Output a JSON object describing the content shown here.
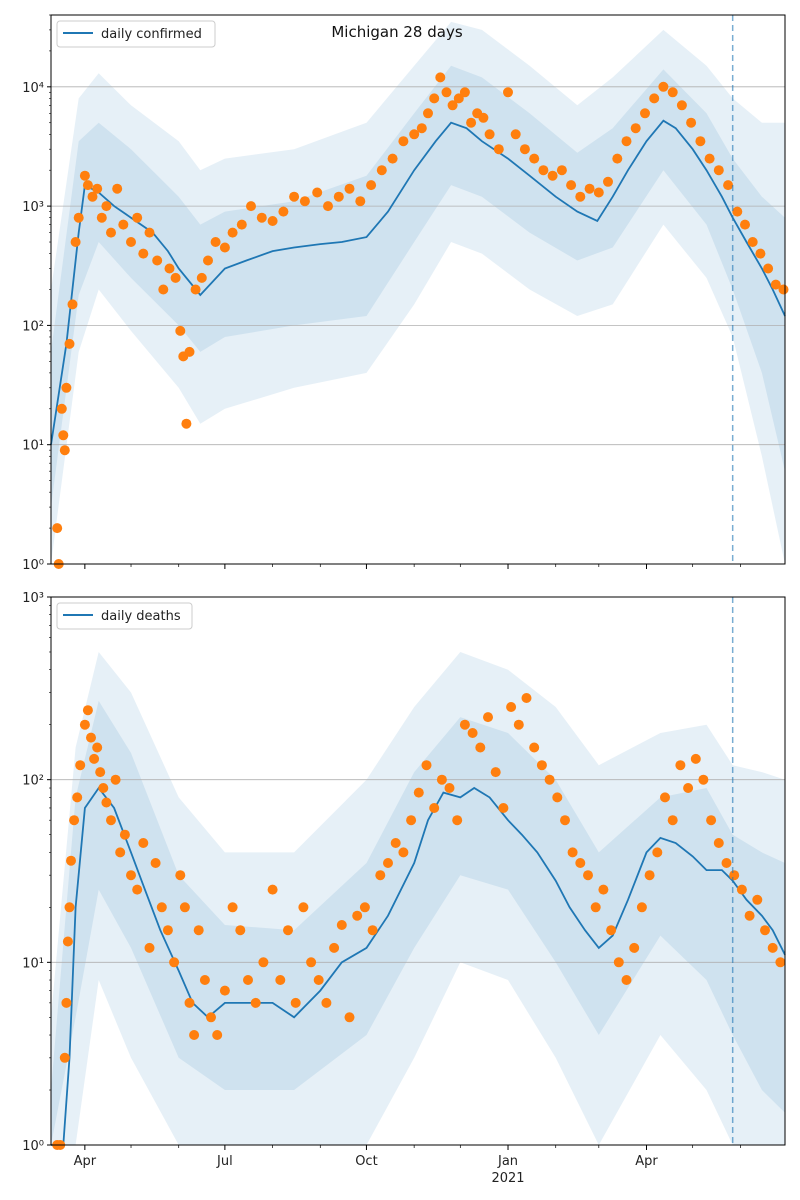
{
  "figure": {
    "title": "Michigan 28 days"
  },
  "colors": {
    "line": "#1f77b4",
    "points": "#ff7f0e",
    "band": "#1f77b4",
    "grid": "#b0b0b0",
    "vline": "#1f77b4"
  },
  "chart_data": [
    {
      "type": "line",
      "name": "daily-confirmed-panel",
      "legend": "daily confirmed",
      "legend_position": "top-left",
      "yscale": "log",
      "ylim": [
        1,
        40000
      ],
      "yticks": [
        1,
        10,
        100,
        1000,
        10000
      ],
      "ytick_labels": [
        "10⁰",
        "10¹",
        "10²",
        "10³",
        "10⁴"
      ],
      "grid": true,
      "xlim": [
        "2020-03-10",
        "2021-06-30"
      ],
      "forecast_start": "2021-05-27",
      "line": {
        "x": [
          "2020-03-10",
          "2020-03-20",
          "2020-03-28",
          "2020-04-01",
          "2020-04-10",
          "2020-04-20",
          "2020-05-01",
          "2020-05-15",
          "2020-05-25",
          "2020-06-01",
          "2020-06-15",
          "2020-07-01",
          "2020-07-15",
          "2020-08-01",
          "2020-08-15",
          "2020-09-01",
          "2020-09-15",
          "2020-10-01",
          "2020-10-15",
          "2020-11-01",
          "2020-11-15",
          "2020-11-25",
          "2020-12-05",
          "2020-12-15",
          "2021-01-01",
          "2021-01-15",
          "2021-02-01",
          "2021-02-15",
          "2021-02-28",
          "2021-03-10",
          "2021-03-20",
          "2021-04-01",
          "2021-04-12",
          "2021-04-20",
          "2021-05-01",
          "2021-05-10",
          "2021-05-20",
          "2021-05-27",
          "2021-06-05",
          "2021-06-15",
          "2021-06-22",
          "2021-06-30"
        ],
        "y": [
          10,
          70,
          600,
          1500,
          1300,
          1000,
          800,
          600,
          420,
          300,
          180,
          300,
          350,
          420,
          450,
          480,
          500,
          550,
          900,
          2000,
          3500,
          5000,
          4500,
          3500,
          2500,
          1800,
          1200,
          900,
          750,
          1200,
          2000,
          3500,
          5200,
          4500,
          3000,
          2000,
          1200,
          800,
          500,
          300,
          200,
          120
        ]
      },
      "bands": [
        {
          "x": [
            "2020-03-10",
            "2020-03-28",
            "2020-04-10",
            "2020-05-01",
            "2020-06-01",
            "2020-06-15",
            "2020-07-01",
            "2020-08-15",
            "2020-10-01",
            "2020-11-01",
            "2020-11-25",
            "2020-12-15",
            "2021-01-15",
            "2021-02-15",
            "2021-03-10",
            "2021-04-12",
            "2021-05-10",
            "2021-05-27",
            "2021-06-15",
            "2021-06-30"
          ],
          "lo": [
            1,
            60,
            200,
            90,
            30,
            15,
            20,
            30,
            40,
            150,
            500,
            400,
            200,
            120,
            150,
            700,
            250,
            80,
            8,
            1
          ],
          "hi": [
            200,
            8000,
            13000,
            7000,
            3500,
            2000,
            2500,
            3000,
            5000,
            15000,
            35000,
            30000,
            15000,
            7000,
            12000,
            30000,
            15000,
            8000,
            5000,
            5000
          ]
        },
        {
          "x": [
            "2020-03-10",
            "2020-03-28",
            "2020-04-10",
            "2020-05-01",
            "2020-06-01",
            "2020-06-15",
            "2020-07-01",
            "2020-08-15",
            "2020-10-01",
            "2020-11-01",
            "2020-11-25",
            "2020-12-15",
            "2021-01-15",
            "2021-02-15",
            "2021-03-10",
            "2021-04-12",
            "2021-05-10",
            "2021-05-27",
            "2021-06-15",
            "2021-06-30"
          ],
          "lo": [
            3,
            180,
            500,
            250,
            100,
            60,
            80,
            100,
            120,
            500,
            1500,
            1200,
            600,
            350,
            450,
            2000,
            700,
            200,
            40,
            6
          ],
          "hi": [
            60,
            3500,
            5000,
            3000,
            1200,
            700,
            900,
            1100,
            1800,
            6000,
            15000,
            12000,
            6000,
            2800,
            4500,
            14000,
            6000,
            2500,
            1200,
            800
          ]
        }
      ],
      "points": {
        "x": [
          "2020-03-14",
          "2020-03-15",
          "2020-03-17",
          "2020-03-18",
          "2020-03-19",
          "2020-03-20",
          "2020-03-22",
          "2020-03-24",
          "2020-03-26",
          "2020-03-28",
          "2020-04-01",
          "2020-04-03",
          "2020-04-06",
          "2020-04-09",
          "2020-04-12",
          "2020-04-15",
          "2020-04-18",
          "2020-04-22",
          "2020-04-26",
          "2020-05-01",
          "2020-05-05",
          "2020-05-09",
          "2020-05-13",
          "2020-05-18",
          "2020-05-22",
          "2020-05-26",
          "2020-05-30",
          "2020-06-02",
          "2020-06-04",
          "2020-06-06",
          "2020-06-08",
          "2020-06-12",
          "2020-06-16",
          "2020-06-20",
          "2020-06-25",
          "2020-07-01",
          "2020-07-06",
          "2020-07-12",
          "2020-07-18",
          "2020-07-25",
          "2020-08-01",
          "2020-08-08",
          "2020-08-15",
          "2020-08-22",
          "2020-08-30",
          "2020-09-06",
          "2020-09-13",
          "2020-09-20",
          "2020-09-27",
          "2020-10-04",
          "2020-10-11",
          "2020-10-18",
          "2020-10-25",
          "2020-11-01",
          "2020-11-06",
          "2020-11-10",
          "2020-11-14",
          "2020-11-18",
          "2020-11-22",
          "2020-11-26",
          "2020-11-30",
          "2020-12-04",
          "2020-12-08",
          "2020-12-12",
          "2020-12-16",
          "2020-12-20",
          "2020-12-26",
          "2021-01-01",
          "2021-01-06",
          "2021-01-12",
          "2021-01-18",
          "2021-01-24",
          "2021-01-30",
          "2021-02-05",
          "2021-02-11",
          "2021-02-17",
          "2021-02-23",
          "2021-03-01",
          "2021-03-07",
          "2021-03-13",
          "2021-03-19",
          "2021-03-25",
          "2021-03-31",
          "2021-04-06",
          "2021-04-12",
          "2021-04-18",
          "2021-04-24",
          "2021-04-30",
          "2021-05-06",
          "2021-05-12",
          "2021-05-18",
          "2021-05-24",
          "2021-05-30",
          "2021-06-04",
          "2021-06-09",
          "2021-06-14",
          "2021-06-19",
          "2021-06-24",
          "2021-06-29"
        ],
        "y": [
          2,
          1,
          20,
          12,
          9,
          30,
          70,
          150,
          500,
          800,
          1800,
          1500,
          1200,
          1400,
          800,
          1000,
          600,
          1400,
          700,
          500,
          800,
          400,
          600,
          350,
          200,
          300,
          250,
          90,
          55,
          15,
          60,
          200,
          250,
          350,
          500,
          450,
          600,
          700,
          1000,
          800,
          750,
          900,
          1200,
          1100,
          1300,
          1000,
          1200,
          1400,
          1100,
          1500,
          2000,
          2500,
          3500,
          4000,
          4500,
          6000,
          8000,
          12000,
          9000,
          7000,
          8000,
          9000,
          5000,
          6000,
          5500,
          4000,
          3000,
          9000,
          4000,
          3000,
          2500,
          2000,
          1800,
          2000,
          1500,
          1200,
          1400,
          1300,
          1600,
          2500,
          3500,
          4500,
          6000,
          8000,
          10000,
          9000,
          7000,
          5000,
          3500,
          2500,
          2000,
          1500,
          900,
          700,
          500,
          400,
          300,
          220,
          200
        ]
      },
      "x_ticks": []
    },
    {
      "type": "line",
      "name": "daily-deaths-panel",
      "legend": "daily deaths",
      "legend_position": "top-left",
      "yscale": "log",
      "ylim": [
        1,
        1000
      ],
      "yticks": [
        1,
        10,
        100,
        1000
      ],
      "ytick_labels": [
        "10⁰",
        "10¹",
        "10²",
        "10³"
      ],
      "grid": true,
      "xlim": [
        "2020-03-10",
        "2021-06-30"
      ],
      "forecast_start": "2021-05-27",
      "line": {
        "x": [
          "2020-03-10",
          "2020-03-18",
          "2020-03-22",
          "2020-03-26",
          "2020-04-01",
          "2020-04-10",
          "2020-04-20",
          "2020-05-01",
          "2020-05-10",
          "2020-05-20",
          "2020-06-01",
          "2020-06-10",
          "2020-06-20",
          "2020-07-01",
          "2020-07-15",
          "2020-08-01",
          "2020-08-15",
          "2020-09-01",
          "2020-09-15",
          "2020-10-01",
          "2020-10-15",
          "2020-11-01",
          "2020-11-10",
          "2020-11-20",
          "2020-12-01",
          "2020-12-10",
          "2020-12-20",
          "2021-01-01",
          "2021-01-10",
          "2021-01-20",
          "2021-02-01",
          "2021-02-10",
          "2021-02-20",
          "2021-03-01",
          "2021-03-10",
          "2021-03-20",
          "2021-04-01",
          "2021-04-10",
          "2021-04-20",
          "2021-05-01",
          "2021-05-10",
          "2021-05-20",
          "2021-05-27",
          "2021-06-05",
          "2021-06-15",
          "2021-06-22",
          "2021-06-30"
        ],
        "y": [
          1,
          1,
          3,
          20,
          70,
          90,
          70,
          40,
          25,
          15,
          9,
          6,
          5,
          6,
          6,
          6,
          5,
          7,
          10,
          12,
          18,
          35,
          60,
          85,
          80,
          90,
          80,
          60,
          50,
          40,
          28,
          20,
          15,
          12,
          14,
          22,
          40,
          48,
          45,
          38,
          32,
          32,
          28,
          22,
          18,
          15,
          11
        ]
      },
      "bands": [
        {
          "x": [
            "2020-03-10",
            "2020-03-26",
            "2020-04-10",
            "2020-05-01",
            "2020-06-01",
            "2020-07-01",
            "2020-08-15",
            "2020-10-01",
            "2020-11-01",
            "2020-12-01",
            "2021-01-01",
            "2021-02-01",
            "2021-03-01",
            "2021-04-10",
            "2021-05-10",
            "2021-05-27",
            "2021-06-15",
            "2021-06-30"
          ],
          "lo": [
            1,
            1,
            8,
            3,
            1,
            1,
            1,
            1,
            3,
            10,
            8,
            3,
            1,
            4,
            2,
            1,
            1,
            1
          ],
          "hi": [
            5,
            150,
            500,
            300,
            80,
            40,
            40,
            100,
            250,
            500,
            400,
            250,
            120,
            180,
            200,
            120,
            110,
            100
          ]
        },
        {
          "x": [
            "2020-03-10",
            "2020-03-26",
            "2020-04-10",
            "2020-05-01",
            "2020-06-01",
            "2020-07-01",
            "2020-08-15",
            "2020-10-01",
            "2020-11-01",
            "2020-12-01",
            "2021-01-01",
            "2021-02-01",
            "2021-03-01",
            "2021-04-10",
            "2021-05-10",
            "2021-05-27",
            "2021-06-15",
            "2021-06-30"
          ],
          "lo": [
            1,
            5,
            25,
            12,
            3,
            2,
            2,
            4,
            12,
            30,
            25,
            10,
            4,
            14,
            8,
            4,
            2,
            1.5
          ],
          "hi": [
            2,
            80,
            270,
            140,
            30,
            16,
            15,
            35,
            110,
            220,
            180,
            100,
            40,
            80,
            90,
            50,
            40,
            35
          ]
        }
      ],
      "points": {
        "x": [
          "2020-03-14",
          "2020-03-16",
          "2020-03-19",
          "2020-03-20",
          "2020-03-21",
          "2020-03-22",
          "2020-03-23",
          "2020-03-25",
          "2020-03-27",
          "2020-03-29",
          "2020-04-01",
          "2020-04-03",
          "2020-04-05",
          "2020-04-07",
          "2020-04-09",
          "2020-04-11",
          "2020-04-13",
          "2020-04-15",
          "2020-04-18",
          "2020-04-21",
          "2020-04-24",
          "2020-04-27",
          "2020-05-01",
          "2020-05-05",
          "2020-05-09",
          "2020-05-13",
          "2020-05-17",
          "2020-05-21",
          "2020-05-25",
          "2020-05-29",
          "2020-06-02",
          "2020-06-05",
          "2020-06-08",
          "2020-06-11",
          "2020-06-14",
          "2020-06-18",
          "2020-06-22",
          "2020-06-26",
          "2020-07-01",
          "2020-07-06",
          "2020-07-11",
          "2020-07-16",
          "2020-07-21",
          "2020-07-26",
          "2020-08-01",
          "2020-08-06",
          "2020-08-11",
          "2020-08-16",
          "2020-08-21",
          "2020-08-26",
          "2020-08-31",
          "2020-09-05",
          "2020-09-10",
          "2020-09-15",
          "2020-09-20",
          "2020-09-25",
          "2020-09-30",
          "2020-10-05",
          "2020-10-10",
          "2020-10-15",
          "2020-10-20",
          "2020-10-25",
          "2020-10-30",
          "2020-11-04",
          "2020-11-09",
          "2020-11-14",
          "2020-11-19",
          "2020-11-24",
          "2020-11-29",
          "2020-12-04",
          "2020-12-09",
          "2020-12-14",
          "2020-12-19",
          "2020-12-24",
          "2020-12-29",
          "2021-01-03",
          "2021-01-08",
          "2021-01-13",
          "2021-01-18",
          "2021-01-23",
          "2021-01-28",
          "2021-02-02",
          "2021-02-07",
          "2021-02-12",
          "2021-02-17",
          "2021-02-22",
          "2021-02-27",
          "2021-03-04",
          "2021-03-09",
          "2021-03-14",
          "2021-03-19",
          "2021-03-24",
          "2021-03-29",
          "2021-04-03",
          "2021-04-08",
          "2021-04-13",
          "2021-04-18",
          "2021-04-23",
          "2021-04-28",
          "2021-05-03",
          "2021-05-08",
          "2021-05-13",
          "2021-05-18",
          "2021-05-23",
          "2021-05-28",
          "2021-06-02",
          "2021-06-07",
          "2021-06-12",
          "2021-06-17",
          "2021-06-22",
          "2021-06-27"
        ],
        "y": [
          1,
          1,
          3,
          6,
          13,
          20,
          36,
          60,
          80,
          120,
          200,
          240,
          170,
          130,
          150,
          110,
          90,
          75,
          60,
          100,
          40,
          50,
          30,
          25,
          45,
          12,
          35,
          20,
          15,
          10,
          30,
          20,
          6,
          4,
          15,
          8,
          5,
          4,
          7,
          20,
          15,
          8,
          6,
          10,
          25,
          8,
          15,
          6,
          20,
          10,
          8,
          6,
          12,
          16,
          5,
          18,
          20,
          15,
          30,
          35,
          45,
          40,
          60,
          85,
          120,
          70,
          100,
          90,
          60,
          200,
          180,
          150,
          220,
          110,
          70,
          250,
          200,
          280,
          150,
          120,
          100,
          80,
          60,
          40,
          35,
          30,
          20,
          25,
          15,
          10,
          8,
          12,
          20,
          30,
          40,
          80,
          60,
          120,
          90,
          130,
          100,
          60,
          45,
          35,
          30,
          25,
          18,
          22,
          15,
          12,
          10
        ]
      },
      "x_ticks": [
        {
          "date": "2020-04-01",
          "label": "Apr"
        },
        {
          "date": "2020-07-01",
          "label": "Jul"
        },
        {
          "date": "2020-10-01",
          "label": "Oct"
        },
        {
          "date": "2021-01-01",
          "label": "Jan"
        },
        {
          "date": "2021-04-01",
          "label": "Apr"
        }
      ],
      "x_sublabel": {
        "date": "2021-01-01",
        "label": "2021"
      }
    }
  ]
}
